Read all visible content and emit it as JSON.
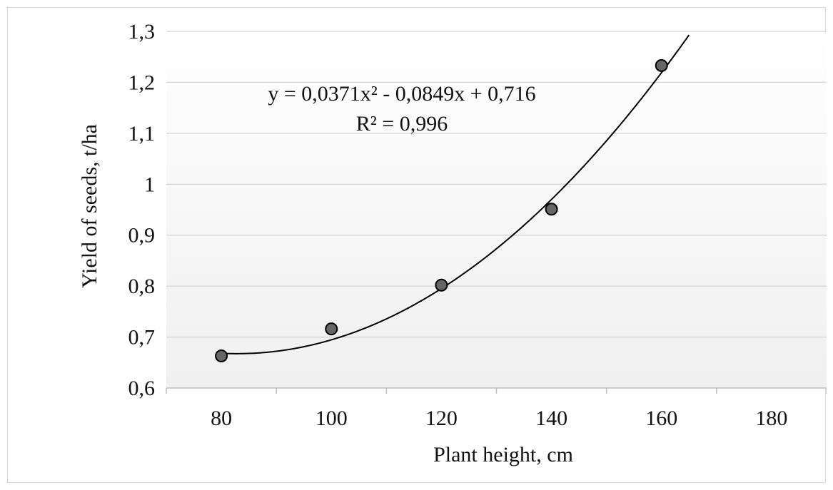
{
  "chart_data": {
    "type": "scatter",
    "xlabel": "Plant height, cm",
    "ylabel": "Yield of seeds, t/ha",
    "xlim": [
      70,
      190
    ],
    "ylim": [
      0.6,
      1.3
    ],
    "x_ticks": [
      80,
      100,
      120,
      140,
      160,
      180
    ],
    "x_tick_labels": [
      "80",
      "100",
      "120",
      "140",
      "160",
      "180"
    ],
    "y_ticks": [
      0.6,
      0.7,
      0.8,
      0.9,
      1.0,
      1.1,
      1.2,
      1.3
    ],
    "y_tick_labels": [
      "0,6",
      "0,7",
      "0,8",
      "0,9",
      "1",
      "1,1",
      "1,2",
      "1,3"
    ],
    "grid": true,
    "series": [
      {
        "x": [
          80,
          100,
          120,
          140,
          160
        ],
        "y": [
          0.663,
          0.716,
          0.802,
          0.951,
          1.233
        ],
        "marker_color": "#666666",
        "marker_edge": "#000000"
      }
    ],
    "trendline": {
      "type": "polynomial",
      "equation": "y = 0,0371x² - 0,0849x + 0,716",
      "r_squared": "R² = 0,996",
      "coefficients": [
        0.0371,
        -0.0849,
        0.716
      ],
      "index_base": {
        "x0": 80,
        "step": 20
      },
      "color": "#000000"
    }
  }
}
